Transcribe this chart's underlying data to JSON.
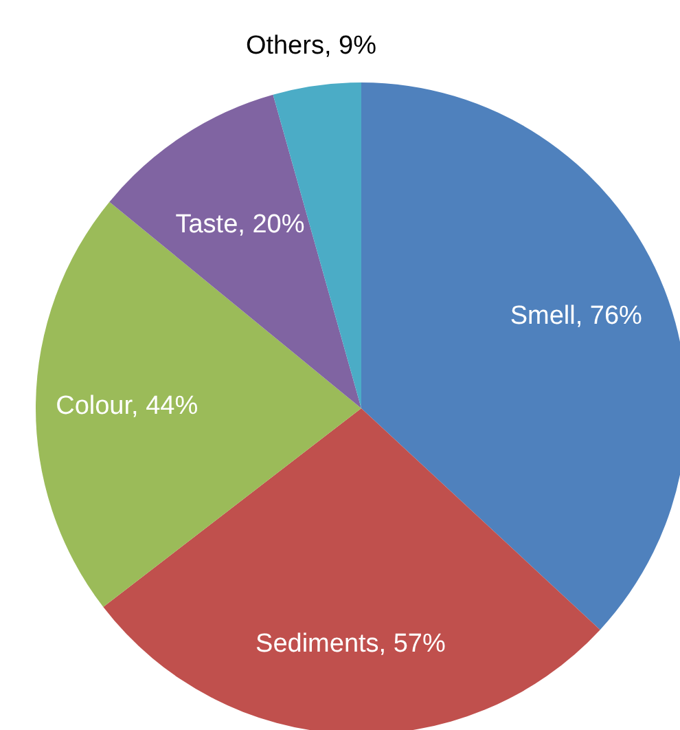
{
  "chart_data": {
    "type": "pie",
    "categories": [
      "Smell",
      "Sediments",
      "Colour",
      "Taste",
      "Others"
    ],
    "values": [
      76,
      57,
      44,
      20,
      9
    ],
    "value_labels": [
      "76%",
      "57%",
      "44%",
      "20%",
      "9%"
    ],
    "colors": [
      "#4f81bd",
      "#c0504d",
      "#9bbb59",
      "#8064a2",
      "#4bacc6"
    ],
    "legend": false
  }
}
